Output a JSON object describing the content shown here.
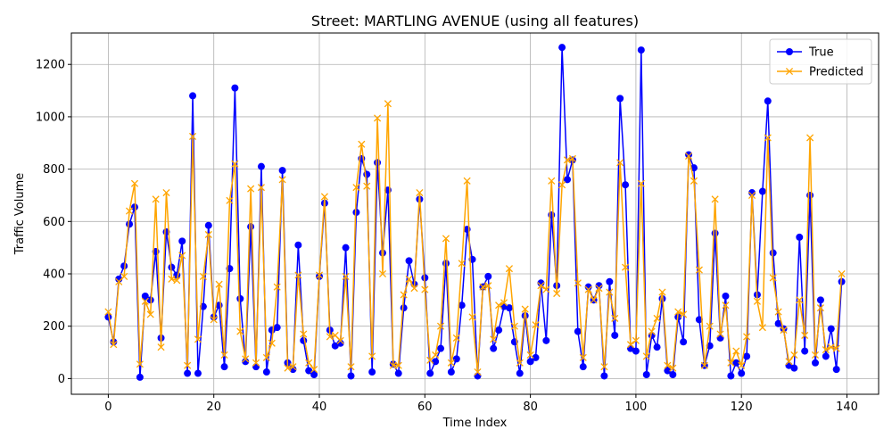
{
  "chart_data": {
    "type": "line",
    "title": "Street: MARTLING AVENUE (using all features)",
    "xlabel": "Time Index",
    "ylabel": "Traffic Volume",
    "xlim": [
      -7,
      146
    ],
    "ylim": [
      -60,
      1320
    ],
    "xticks": [
      0,
      20,
      40,
      60,
      80,
      100,
      120,
      140
    ],
    "yticks": [
      0,
      200,
      400,
      600,
      800,
      1000,
      1200
    ],
    "grid": true,
    "legend": "top-right",
    "series": [
      {
        "name": "True",
        "color": "#0000ff",
        "marker": "circle",
        "values": [
          235,
          140,
          380,
          430,
          590,
          655,
          5,
          315,
          300,
          485,
          155,
          560,
          425,
          395,
          525,
          20,
          1080,
          20,
          275,
          585,
          235,
          280,
          45,
          420,
          1110,
          305,
          65,
          580,
          45,
          810,
          25,
          185,
          195,
          795,
          60,
          35,
          510,
          145,
          30,
          15,
          390,
          670,
          185,
          125,
          135,
          500,
          10,
          635,
          840,
          780,
          25,
          825,
          480,
          720,
          55,
          20,
          270,
          450,
          360,
          685,
          385,
          20,
          65,
          115,
          440,
          25,
          75,
          280,
          570,
          455,
          10,
          350,
          390,
          115,
          185,
          275,
          270,
          140,
          20,
          240,
          65,
          80,
          365,
          145,
          625,
          355,
          1265,
          760,
          835,
          180,
          45,
          350,
          300,
          355,
          10,
          370,
          165,
          1070,
          740,
          115,
          105,
          1255,
          15,
          165,
          120,
          305,
          30,
          15,
          235,
          140,
          855,
          805,
          225,
          50,
          125,
          555,
          155,
          315,
          10,
          60,
          20,
          85,
          710,
          320,
          715,
          1060,
          480,
          210,
          190,
          50,
          40,
          540,
          105,
          700,
          60,
          300,
          85,
          190,
          35,
          370
        ]
      },
      {
        "name": "Predicted",
        "color": "#ffa500",
        "marker": "x",
        "values": [
          255,
          130,
          370,
          390,
          640,
          745,
          55,
          295,
          245,
          685,
          120,
          710,
          380,
          375,
          470,
          50,
          925,
          150,
          390,
          550,
          225,
          360,
          90,
          680,
          820,
          180,
          75,
          725,
          60,
          730,
          80,
          135,
          350,
          760,
          40,
          45,
          395,
          170,
          60,
          35,
          395,
          695,
          160,
          165,
          145,
          390,
          45,
          730,
          895,
          735,
          85,
          995,
          400,
          1050,
          50,
          50,
          320,
          380,
          345,
          710,
          340,
          70,
          90,
          200,
          535,
          60,
          155,
          440,
          755,
          235,
          25,
          350,
          355,
          150,
          280,
          290,
          420,
          200,
          60,
          265,
          90,
          205,
          355,
          340,
          755,
          325,
          740,
          835,
          840,
          365,
          80,
          340,
          300,
          345,
          45,
          330,
          230,
          825,
          425,
          130,
          145,
          745,
          85,
          180,
          230,
          330,
          50,
          40,
          255,
          245,
          850,
          755,
          415,
          50,
          200,
          685,
          170,
          280,
          60,
          105,
          50,
          160,
          700,
          295,
          195,
          920,
          385,
          255,
          185,
          65,
          90,
          300,
          165,
          920,
          90,
          270,
          110,
          120,
          115,
          400
        ]
      }
    ]
  }
}
